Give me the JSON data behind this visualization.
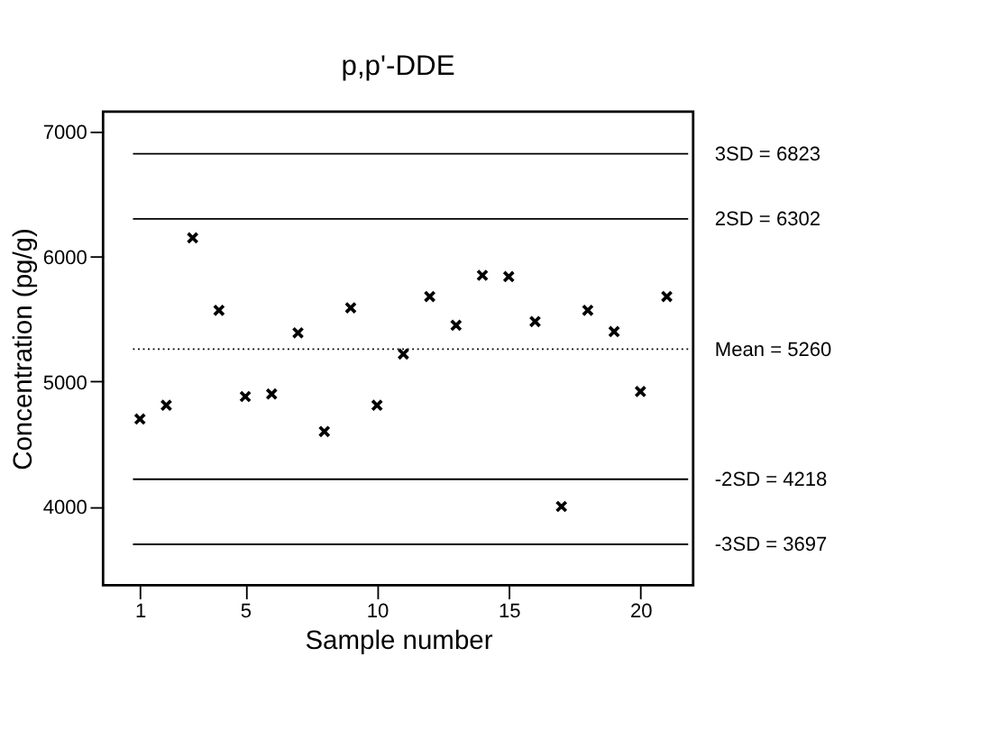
{
  "chart_data": {
    "type": "scatter",
    "title": "p,p'-DDE",
    "xlabel": "Sample number",
    "ylabel": "Concentration (pg/g)",
    "x": [
      1,
      2,
      3,
      4,
      5,
      6,
      7,
      8,
      9,
      10,
      11,
      12,
      13,
      14,
      15,
      16,
      17,
      18,
      19,
      20,
      21
    ],
    "values": [
      4700,
      4810,
      6150,
      5570,
      4880,
      4900,
      5390,
      4600,
      5590,
      4810,
      5220,
      5680,
      5450,
      5850,
      5840,
      5480,
      4000,
      5570,
      5400,
      4920,
      5680
    ],
    "color": "#000000",
    "marker": "cross",
    "grid": false,
    "xlim": [
      -0.4,
      22
    ],
    "xticks": [
      1,
      5,
      10,
      15,
      20
    ],
    "ylim": [
      3370,
      7160
    ],
    "yticks": [
      4000,
      5000,
      6000,
      7000
    ],
    "ref_lines": [
      {
        "axis": "y",
        "value": 6823,
        "label": "3SD = 6823",
        "line_style": "solid"
      },
      {
        "axis": "y",
        "value": 6302,
        "label": "2SD = 6302",
        "line_style": "solid"
      },
      {
        "axis": "y",
        "value": 5260,
        "label": "Mean = 5260",
        "line_style": "dotted"
      },
      {
        "axis": "y",
        "value": 4218,
        "label": "-2SD = 4218",
        "line_style": "solid"
      },
      {
        "axis": "y",
        "value": 3697,
        "label": "-3SD = 3697",
        "line_style": "solid"
      }
    ]
  }
}
